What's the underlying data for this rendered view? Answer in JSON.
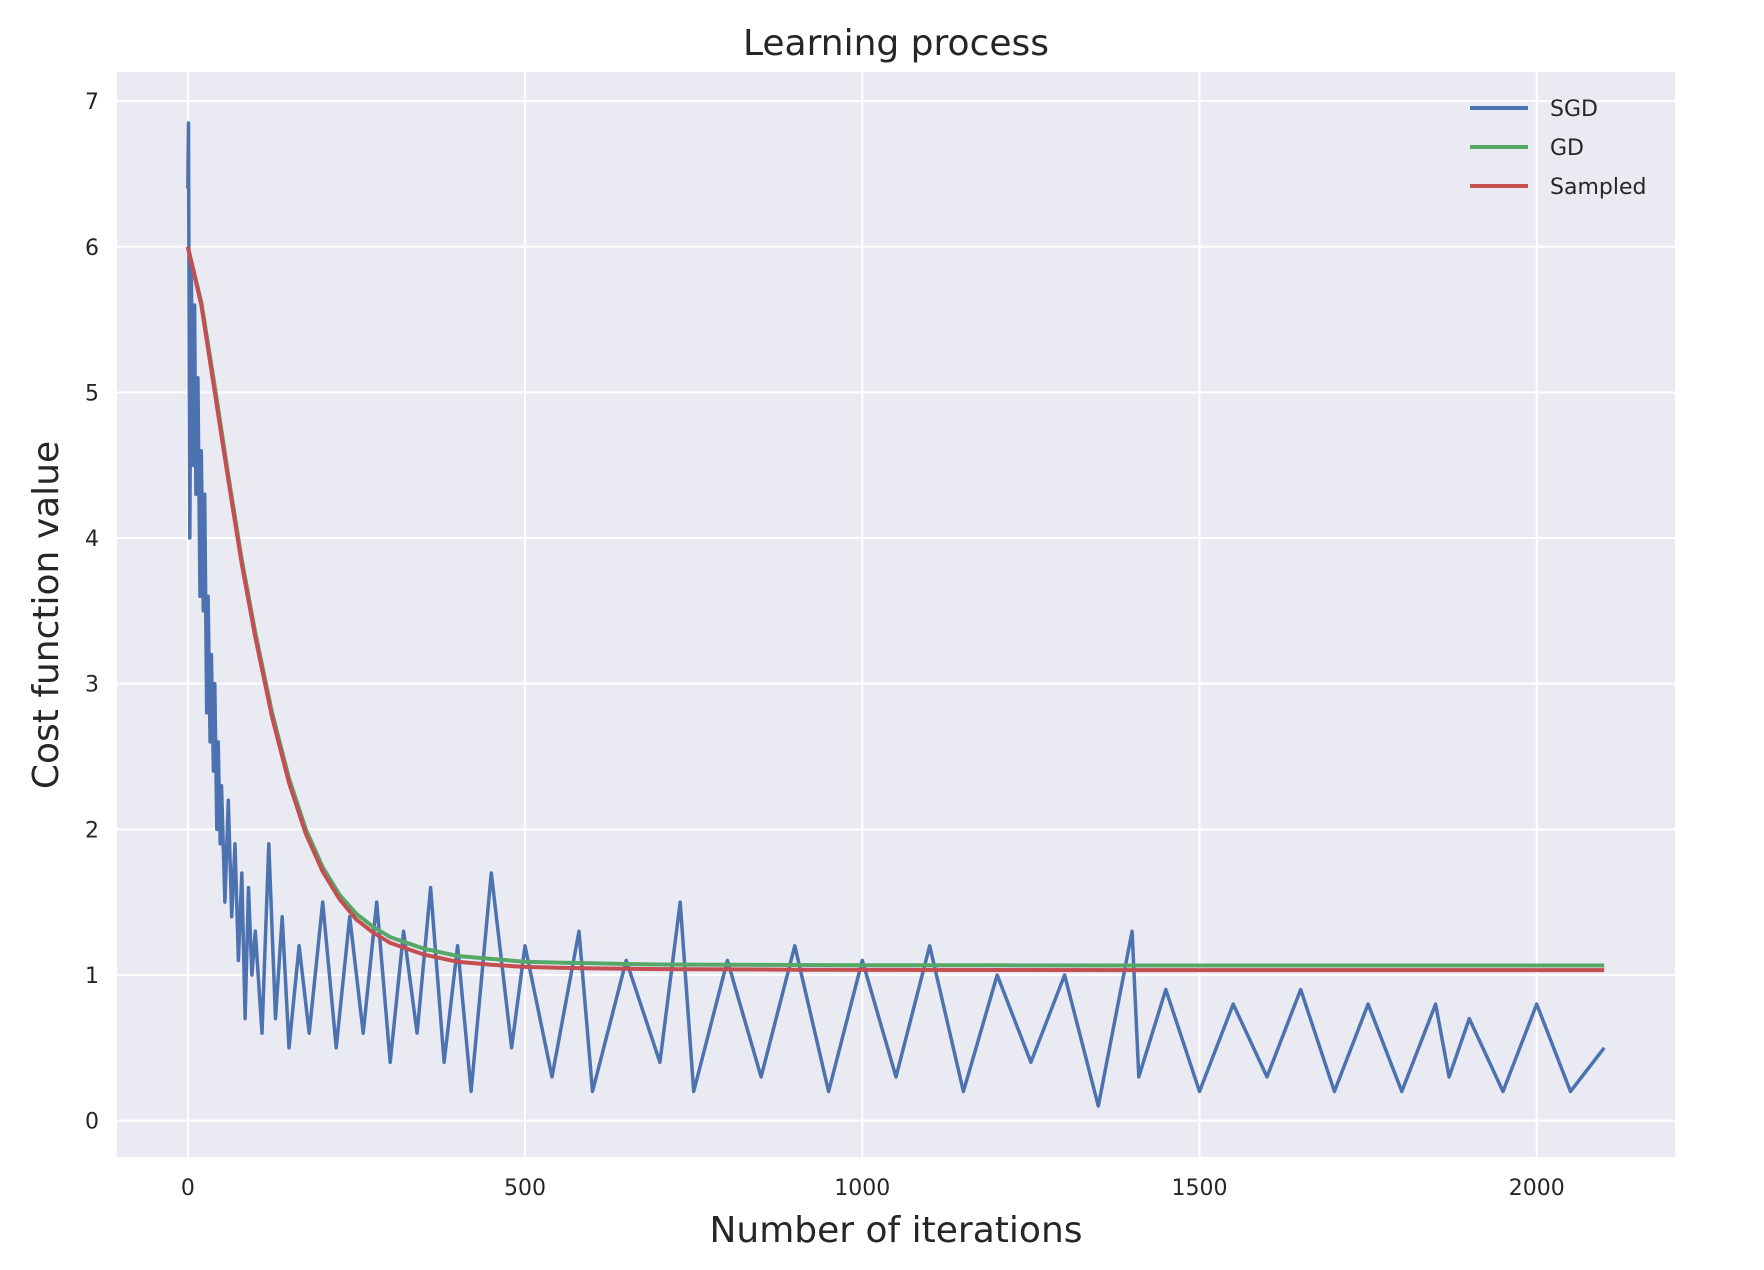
{
  "chart_data": {
    "type": "line",
    "title": "Learning process",
    "xlabel": "Number of iterations",
    "ylabel": "Cost function value",
    "xlim": [
      -105,
      2205
    ],
    "ylim": [
      -0.25,
      7.2
    ],
    "xticks": [
      0,
      500,
      1000,
      1500,
      2000
    ],
    "yticks": [
      0,
      1,
      2,
      3,
      4,
      5,
      6,
      7
    ],
    "grid": true,
    "legend": "top-right",
    "background": "#eaeaf2",
    "series": [
      {
        "name": "SGD",
        "color": "#4c72b0",
        "x": [
          0,
          1,
          3,
          5,
          8,
          10,
          12,
          15,
          18,
          20,
          23,
          25,
          28,
          30,
          33,
          35,
          38,
          40,
          43,
          45,
          48,
          50,
          55,
          60,
          65,
          70,
          75,
          80,
          85,
          90,
          95,
          100,
          110,
          120,
          130,
          140,
          150,
          165,
          180,
          200,
          220,
          240,
          260,
          280,
          300,
          320,
          340,
          360,
          380,
          400,
          420,
          450,
          480,
          500,
          540,
          580,
          600,
          650,
          700,
          730,
          750,
          800,
          850,
          900,
          950,
          1000,
          1050,
          1100,
          1150,
          1200,
          1250,
          1300,
          1350,
          1400,
          1410,
          1450,
          1500,
          1550,
          1600,
          1650,
          1700,
          1750,
          1800,
          1850,
          1870,
          1900,
          1950,
          2000,
          2050,
          2100
        ],
        "y": [
          6.4,
          6.85,
          4.0,
          5.9,
          4.5,
          5.6,
          4.3,
          5.1,
          3.6,
          4.6,
          3.5,
          4.3,
          2.8,
          3.6,
          2.6,
          3.2,
          2.4,
          3.0,
          2.0,
          2.6,
          1.9,
          2.3,
          1.5,
          2.2,
          1.4,
          1.9,
          1.1,
          1.7,
          0.7,
          1.6,
          1.0,
          1.3,
          0.6,
          1.9,
          0.7,
          1.4,
          0.5,
          1.2,
          0.6,
          1.5,
          0.5,
          1.4,
          0.6,
          1.5,
          0.4,
          1.3,
          0.6,
          1.6,
          0.4,
          1.2,
          0.2,
          1.7,
          0.5,
          1.2,
          0.3,
          1.3,
          0.2,
          1.1,
          0.4,
          1.5,
          0.2,
          1.1,
          0.3,
          1.2,
          0.2,
          1.1,
          0.3,
          1.2,
          0.2,
          1.0,
          0.4,
          1.0,
          0.1,
          1.3,
          0.3,
          0.9,
          0.2,
          0.8,
          0.3,
          0.9,
          0.2,
          0.8,
          0.2,
          0.8,
          0.3,
          0.7,
          0.2,
          0.8,
          0.2,
          0.5
        ]
      },
      {
        "name": "GD",
        "color": "#55a868",
        "x": [
          0,
          20,
          40,
          60,
          80,
          100,
          125,
          150,
          175,
          200,
          225,
          250,
          275,
          300,
          350,
          400,
          450,
          500,
          550,
          600,
          650,
          700,
          800,
          900,
          1000,
          1200,
          1500,
          1800,
          2100
        ],
        "y": [
          6.0,
          5.62,
          5.04,
          4.43,
          3.85,
          3.35,
          2.8,
          2.35,
          2.0,
          1.74,
          1.55,
          1.42,
          1.33,
          1.26,
          1.18,
          1.13,
          1.11,
          1.09,
          1.085,
          1.08,
          1.075,
          1.072,
          1.07,
          1.068,
          1.067,
          1.066,
          1.065,
          1.065,
          1.065
        ]
      },
      {
        "name": "Sampled",
        "color": "#c44e52",
        "x": [
          0,
          20,
          40,
          60,
          80,
          100,
          125,
          150,
          175,
          200,
          225,
          250,
          275,
          300,
          350,
          400,
          450,
          500,
          550,
          600,
          650,
          700,
          800,
          900,
          1000,
          1200,
          1500,
          1800,
          2100
        ],
        "y": [
          6.0,
          5.6,
          5.0,
          4.4,
          3.82,
          3.32,
          2.77,
          2.32,
          1.97,
          1.71,
          1.52,
          1.38,
          1.29,
          1.22,
          1.14,
          1.09,
          1.07,
          1.055,
          1.05,
          1.045,
          1.042,
          1.04,
          1.038,
          1.036,
          1.035,
          1.034,
          1.033,
          1.033,
          1.033
        ]
      }
    ]
  }
}
